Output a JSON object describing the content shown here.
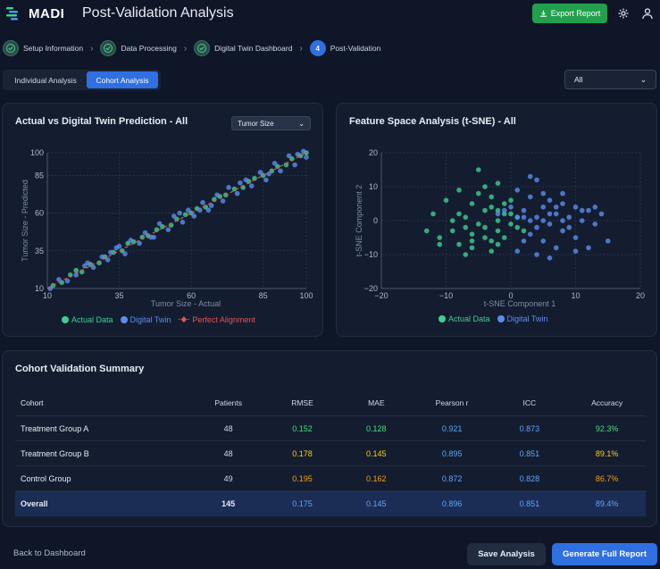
{
  "app": {
    "brand": "MADI",
    "title": "Post-Validation Analysis"
  },
  "header": {
    "export_label": "Export Report"
  },
  "stepper": [
    {
      "label": "Setup Information",
      "status": "done"
    },
    {
      "label": "Data Processing",
      "status": "done"
    },
    {
      "label": "Digital Twin Dashboard",
      "status": "done"
    },
    {
      "label": "Post-Validation",
      "status": "active",
      "number": "4"
    }
  ],
  "tabs": [
    {
      "label": "Individual Analysis"
    },
    {
      "label": "Cohort Analysis"
    }
  ],
  "cohort_select": {
    "value": "All"
  },
  "scatter_panel": {
    "title": "Actual vs Digital Twin Prediction - All",
    "metric_select": "Tumor Size"
  },
  "tsne_panel": {
    "title": "Feature Space Analysis (t-SNE) - All"
  },
  "colors": {
    "actual": "#3ecf8e",
    "twin": "#5b8def",
    "perfect": "#e05555",
    "accent": "#2f6fe0",
    "green": "#4ade80",
    "yellow": "#facc15",
    "orange": "#f59e0b",
    "blue": "#60a5fa"
  },
  "chart_data": [
    {
      "type": "scatter",
      "title": "Actual vs Digital Twin Prediction - All",
      "xlabel": "Tumor Size - Actual",
      "ylabel": "Tumor Size - Predicted",
      "xlim": [
        10,
        100
      ],
      "ylim": [
        10,
        100
      ],
      "xticks": [
        "10",
        "35",
        "60",
        "85",
        "100"
      ],
      "yticks": [
        "10",
        "35",
        "60",
        "85",
        "100"
      ],
      "legend": [
        "Actual Data",
        "Digital Twin",
        "Perfect Alignment"
      ],
      "grid": true,
      "series": [
        {
          "name": "Actual Data",
          "points": [
            [
              12,
              12
            ],
            [
              15,
              14
            ],
            [
              18,
              19
            ],
            [
              20,
              22
            ],
            [
              22,
              21
            ],
            [
              25,
              26
            ],
            [
              28,
              27
            ],
            [
              30,
              31
            ],
            [
              33,
              34
            ],
            [
              36,
              35
            ],
            [
              38,
              40
            ],
            [
              40,
              41
            ],
            [
              43,
              44
            ],
            [
              45,
              45
            ],
            [
              48,
              49
            ],
            [
              50,
              51
            ],
            [
              53,
              52
            ],
            [
              55,
              56
            ],
            [
              58,
              59
            ],
            [
              60,
              60
            ],
            [
              62,
              63
            ],
            [
              65,
              64
            ],
            [
              68,
              69
            ],
            [
              70,
              71
            ],
            [
              72,
              72
            ],
            [
              75,
              76
            ],
            [
              78,
              77
            ],
            [
              80,
              81
            ],
            [
              82,
              83
            ],
            [
              85,
              85
            ],
            [
              88,
              88
            ],
            [
              90,
              91
            ],
            [
              93,
              92
            ],
            [
              95,
              96
            ],
            [
              98,
              98
            ],
            [
              100,
              100
            ]
          ]
        },
        {
          "name": "Digital Twin",
          "points": [
            [
              11,
              10
            ],
            [
              14,
              16
            ],
            [
              17,
              15
            ],
            [
              20,
              19
            ],
            [
              23,
              25
            ],
            [
              26,
              24
            ],
            [
              29,
              31
            ],
            [
              31,
              29
            ],
            [
              34,
              37
            ],
            [
              37,
              33
            ],
            [
              39,
              42
            ],
            [
              42,
              40
            ],
            [
              44,
              47
            ],
            [
              47,
              44
            ],
            [
              49,
              53
            ],
            [
              52,
              49
            ],
            [
              54,
              58
            ],
            [
              57,
              54
            ],
            [
              59,
              62
            ],
            [
              61,
              58
            ],
            [
              64,
              67
            ],
            [
              66,
              62
            ],
            [
              69,
              72
            ],
            [
              71,
              68
            ],
            [
              73,
              77
            ],
            [
              76,
              73
            ],
            [
              79,
              82
            ],
            [
              81,
              78
            ],
            [
              84,
              87
            ],
            [
              86,
              82
            ],
            [
              89,
              93
            ],
            [
              91,
              88
            ],
            [
              94,
              98
            ],
            [
              96,
              92
            ],
            [
              99,
              101
            ],
            [
              100,
              97
            ],
            [
              24,
              27
            ],
            [
              35,
              38
            ],
            [
              46,
              44
            ],
            [
              56,
              60
            ],
            [
              67,
              65
            ],
            [
              77,
              80
            ],
            [
              87,
              86
            ],
            [
              97,
              99
            ],
            [
              32,
              34
            ],
            [
              63,
              62
            ]
          ]
        },
        {
          "name": "Perfect Alignment",
          "points": [
            [
              10,
              10
            ],
            [
              100,
              100
            ]
          ]
        }
      ]
    },
    {
      "type": "scatter",
      "title": "Feature Space Analysis (t-SNE) - All",
      "xlabel": "t-SNE Component 1",
      "ylabel": "t-SNE Component 2",
      "xlim": [
        -20,
        20
      ],
      "ylim": [
        -20,
        20
      ],
      "xticks": [
        "−20",
        "−10",
        "0",
        "10",
        "20"
      ],
      "yticks": [
        "−20",
        "−10",
        "0",
        "10",
        "20"
      ],
      "legend": [
        "Actual Data",
        "Digital Twin"
      ],
      "grid": true,
      "series": [
        {
          "name": "Actual Data",
          "points": [
            [
              -5,
              15
            ],
            [
              -2,
              11
            ],
            [
              -8,
              9
            ],
            [
              -6,
              5
            ],
            [
              -4,
              3
            ],
            [
              -3,
              4
            ],
            [
              -1,
              2
            ],
            [
              -2,
              0
            ],
            [
              -5,
              -1
            ],
            [
              -7,
              -2
            ],
            [
              -9,
              -3
            ],
            [
              -6,
              -4
            ],
            [
              -4,
              -5
            ],
            [
              -2,
              -3
            ],
            [
              0,
              -1
            ],
            [
              1,
              1
            ],
            [
              -3,
              7
            ],
            [
              -10,
              6
            ],
            [
              -12,
              2
            ],
            [
              -11,
              -5
            ],
            [
              -13,
              -3
            ],
            [
              -6,
              -8
            ],
            [
              -8,
              -7
            ],
            [
              -3,
              -9
            ],
            [
              -7,
              1
            ],
            [
              -1,
              5
            ],
            [
              0,
              6
            ],
            [
              -4,
              -2
            ],
            [
              -2,
              3
            ],
            [
              -9,
              0
            ],
            [
              1,
              -2
            ],
            [
              -5,
              8
            ],
            [
              -6,
              -6
            ],
            [
              -8,
              2
            ],
            [
              -3,
              -6
            ],
            [
              -11,
              -7
            ],
            [
              -7,
              -10
            ],
            [
              2,
              -3
            ],
            [
              -1,
              -5
            ],
            [
              -4,
              10
            ],
            [
              -2,
              -7
            ],
            [
              0,
              2
            ]
          ]
        },
        {
          "name": "Digital Twin",
          "points": [
            [
              3,
              13
            ],
            [
              4,
              12
            ],
            [
              1,
              9
            ],
            [
              5,
              8
            ],
            [
              6,
              6
            ],
            [
              8,
              5
            ],
            [
              10,
              4
            ],
            [
              12,
              3
            ],
            [
              7,
              2
            ],
            [
              9,
              1
            ],
            [
              11,
              0
            ],
            [
              13,
              -1
            ],
            [
              2,
              3
            ],
            [
              4,
              1
            ],
            [
              6,
              -1
            ],
            [
              8,
              -3
            ],
            [
              10,
              -5
            ],
            [
              3,
              -4
            ],
            [
              5,
              -6
            ],
            [
              7,
              -8
            ],
            [
              1,
              -9
            ],
            [
              2,
              -6
            ],
            [
              4,
              -2
            ],
            [
              6,
              2
            ],
            [
              8,
              0
            ],
            [
              0,
              4
            ],
            [
              -1,
              3
            ],
            [
              3,
              7
            ],
            [
              5,
              4
            ],
            [
              9,
              -2
            ],
            [
              11,
              3
            ],
            [
              13,
              4
            ],
            [
              15,
              -6
            ],
            [
              12,
              -8
            ],
            [
              4,
              -10
            ],
            [
              6,
              -11
            ],
            [
              14,
              2
            ],
            [
              -2,
              2
            ],
            [
              1,
              1
            ],
            [
              3,
              0
            ],
            [
              5,
              0
            ],
            [
              2,
              1
            ],
            [
              7,
              4
            ],
            [
              8,
              8
            ],
            [
              10,
              -9
            ]
          ]
        }
      ]
    }
  ],
  "summary": {
    "title": "Cohort Validation Summary",
    "columns": [
      "Cohort",
      "Patients",
      "RMSE",
      "MAE",
      "Pearson r",
      "ICC",
      "Accuracy"
    ],
    "rows": [
      {
        "cohort": "Treatment Group A",
        "patients": "48",
        "rmse": "0.152",
        "mae": "0.128",
        "pearson": "0.921",
        "icc": "0.873",
        "accuracy": "92.3%",
        "rmse_color": "#4ade80",
        "mae_color": "#4ade80",
        "acc_color": "#4ade80"
      },
      {
        "cohort": "Treatment Group B",
        "patients": "48",
        "rmse": "0.178",
        "mae": "0.145",
        "pearson": "0.895",
        "icc": "0.851",
        "accuracy": "89.1%",
        "rmse_color": "#facc15",
        "mae_color": "#facc15",
        "acc_color": "#facc15"
      },
      {
        "cohort": "Control Group",
        "patients": "49",
        "rmse": "0.195",
        "mae": "0.162",
        "pearson": "0.872",
        "icc": "0.828",
        "accuracy": "86.7%",
        "rmse_color": "#f59e0b",
        "mae_color": "#f59e0b",
        "acc_color": "#f59e0b"
      }
    ],
    "overall": {
      "cohort": "Overall",
      "patients": "145",
      "rmse": "0.175",
      "mae": "0.145",
      "pearson": "0.896",
      "icc": "0.851",
      "accuracy": "89.4%"
    }
  },
  "footer": {
    "back_label": "Back to Dashboard",
    "save_label": "Save Analysis",
    "generate_label": "Generate Full Report"
  }
}
